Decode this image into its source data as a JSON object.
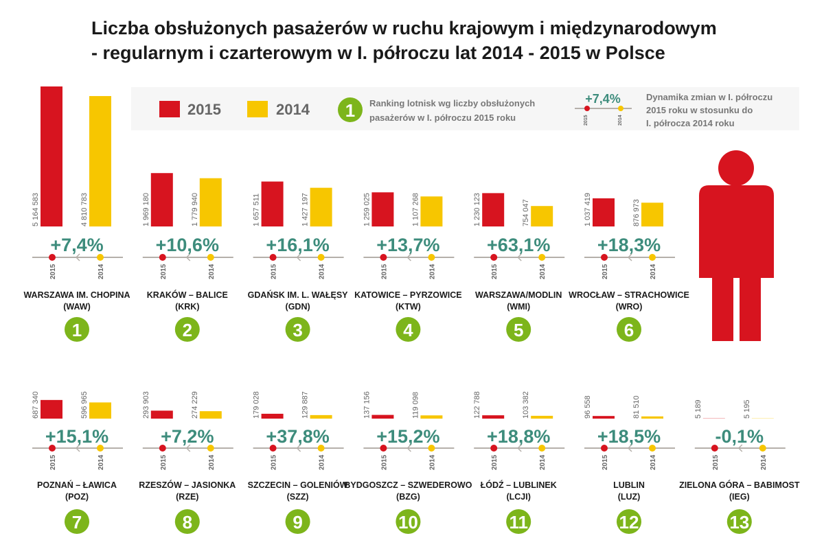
{
  "chart_data": {
    "type": "bar",
    "title_lines": [
      "Liczba obsłużonych pasażerów w ruchu krajowym i międzynarodowym",
      "- regularnym i czarterowym w I. półroczu lat 2014 - 2015 w Polsce"
    ],
    "series_names": [
      "2015",
      "2014"
    ],
    "colors": {
      "2015": "#d7141f",
      "2014": "#f7c600",
      "percent": "#3d8c7c",
      "rank": "#7db51b",
      "axis": "#b5b0aa"
    },
    "legend": {
      "rank_example": "1",
      "rank_text": [
        "Ranking lotnisk wg liczby obsłużonych",
        "pasażerów w I. półroczu 2015 roku"
      ],
      "dyn_example": "+7,4%",
      "dyn_text": [
        "Dynamika zmian w I. półroczu",
        "2015 roku w stosunku do",
        "I. półrocza 2014 roku"
      ],
      "placement": "top"
    },
    "airports": [
      {
        "rank": "1",
        "name": "WARSZAWA IM. CHOPINA",
        "code": "(WAW)",
        "v2015": 5164583,
        "v2014": 4810783,
        "l2015": "5 164 583",
        "l2014": "4 810 783",
        "change": "+7,4%"
      },
      {
        "rank": "2",
        "name": "KRAKÓW – BALICE",
        "code": "(KRK)",
        "v2015": 1969180,
        "v2014": 1779940,
        "l2015": "1 969 180",
        "l2014": "1 779 940",
        "change": "+10,6%"
      },
      {
        "rank": "3",
        "name": "GDAŃSK IM. L. WAŁĘSY",
        "code": "(GDN)",
        "v2015": 1657511,
        "v2014": 1427197,
        "l2015": "1 657 511",
        "l2014": "1 427 197",
        "change": "+16,1%"
      },
      {
        "rank": "4",
        "name": "KATOWICE – PYRZOWICE",
        "code": "(KTW)",
        "v2015": 1259025,
        "v2014": 1107268,
        "l2015": "1 259 025",
        "l2014": "1 107 268",
        "change": "+13,7%"
      },
      {
        "rank": "5",
        "name": "WARSZAWA/MODLIN",
        "code": "(WMI)",
        "v2015": 1230123,
        "v2014": 754047,
        "l2015": "1 230 123",
        "l2014": "754 047",
        "change": "+63,1%"
      },
      {
        "rank": "6",
        "name": "WROCŁAW – STRACHOWICE",
        "code": "(WRO)",
        "v2015": 1037419,
        "v2014": 876973,
        "l2015": "1 037 419",
        "l2014": "876 973",
        "change": "+18,3%"
      },
      {
        "rank": "7",
        "name": "POZNAŃ – ŁAWICA",
        "code": "(POZ)",
        "v2015": 687340,
        "v2014": 596965,
        "l2015": "687 340",
        "l2014": "596 965",
        "change": "+15,1%"
      },
      {
        "rank": "8",
        "name": "RZESZÓW – JASIONKA",
        "code": "(RZE)",
        "v2015": 293903,
        "v2014": 274229,
        "l2015": "293 903",
        "l2014": "274 229",
        "change": "+7,2%"
      },
      {
        "rank": "9",
        "name": "SZCZECIN – GOLENIÓW",
        "code": "(SZZ)",
        "v2015": 179028,
        "v2014": 129887,
        "l2015": "179 028",
        "l2014": "129 887",
        "change": "+37,8%"
      },
      {
        "rank": "10",
        "name": "BYDGOSZCZ – SZWEDEROWO",
        "code": "(BZG)",
        "v2015": 137156,
        "v2014": 119098,
        "l2015": "137 156",
        "l2014": "119 098",
        "change": "+15,2%"
      },
      {
        "rank": "11",
        "name": "ŁÓDŹ – LUBLINEK",
        "code": "(LCJI)",
        "v2015": 122788,
        "v2014": 103382,
        "l2015": "122 788",
        "l2014": "103 382",
        "change": "+18,8%"
      },
      {
        "rank": "12",
        "name": "LUBLIN",
        "code": "(LUZ)",
        "v2015": 96558,
        "v2014": 81510,
        "l2015": "96 558",
        "l2014": "81 510",
        "change": "+18,5%"
      },
      {
        "rank": "13",
        "name": "ZIELONA GÓRA – BABIMOST",
        "code": "(IEG)",
        "v2015": 5189,
        "v2014": 5195,
        "l2015": "5 189",
        "l2014": "5 195",
        "change": "-0,1%"
      }
    ]
  }
}
